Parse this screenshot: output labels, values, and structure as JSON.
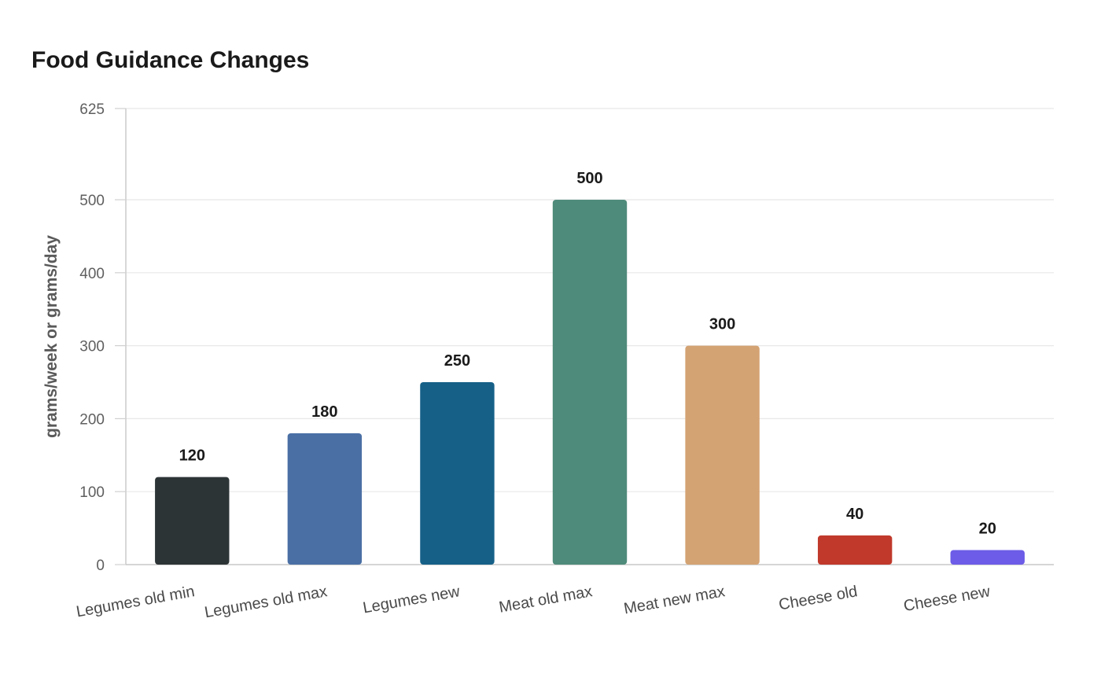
{
  "chart_data": {
    "type": "bar",
    "title": "Food Guidance Changes",
    "xlabel": "",
    "ylabel": "grams/week or grams/day",
    "categories": [
      "Legumes old min",
      "Legumes old max",
      "Legumes new",
      "Meat old max",
      "Meat new max",
      "Cheese old",
      "Cheese new"
    ],
    "values": [
      120,
      180,
      250,
      500,
      300,
      40,
      20
    ],
    "colors": [
      "#2d3436",
      "#4a6fa5",
      "#166088",
      "#4f8b7a",
      "#d4a373",
      "#c0392b",
      "#6c5ce7"
    ],
    "yticks": [
      0,
      100,
      200,
      300,
      400,
      500,
      625
    ],
    "ylim": [
      0,
      625
    ],
    "grid": true,
    "legend": "none"
  }
}
